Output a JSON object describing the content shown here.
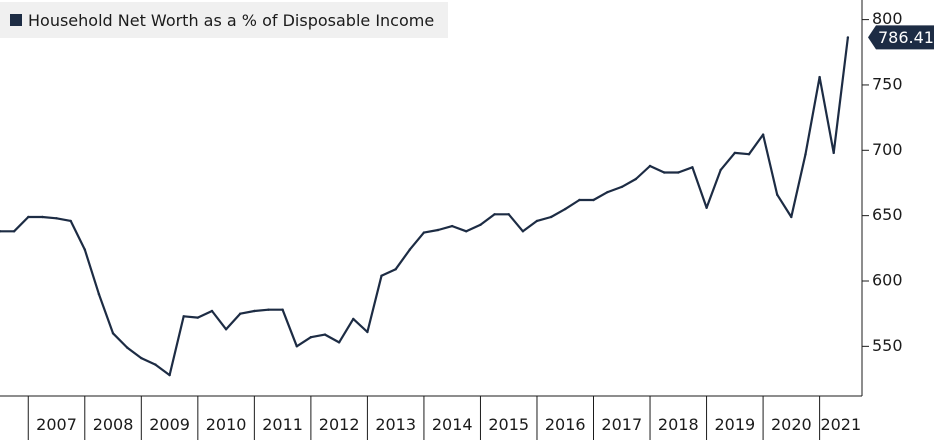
{
  "chart_data": {
    "type": "line",
    "legend": {
      "label": "Household Net Worth as a % of Disposable Income",
      "placement": "top-left"
    },
    "series_color": "#1d2c44",
    "last_value_label": "786.41",
    "y_axis": {
      "position": "right",
      "ticks": [
        550,
        600,
        650,
        700,
        750,
        800
      ],
      "ylim": [
        512,
        815
      ]
    },
    "x_axis": {
      "ticks": [
        "2007",
        "2008",
        "2009",
        "2010",
        "2011",
        "2012",
        "2013",
        "2014",
        "2015",
        "2016",
        "2017",
        "2018",
        "2019",
        "2020",
        "2021"
      ],
      "xlim": [
        2006.5,
        2021.75
      ]
    },
    "grid": false,
    "points": [
      [
        "2006Q3",
        638
      ],
      [
        "2006Q4",
        638
      ],
      [
        "2007Q1",
        649
      ],
      [
        "2007Q2",
        649
      ],
      [
        "2007Q3",
        648
      ],
      [
        "2007Q4",
        646
      ],
      [
        "2008Q1",
        624
      ],
      [
        "2008Q2",
        590
      ],
      [
        "2008Q3",
        560
      ],
      [
        "2008Q4",
        549
      ],
      [
        "2009Q1",
        541
      ],
      [
        "2009Q2",
        536
      ],
      [
        "2009Q3",
        528
      ],
      [
        "2009Q4",
        573
      ],
      [
        "2010Q1",
        572
      ],
      [
        "2010Q2",
        577
      ],
      [
        "2010Q3",
        563
      ],
      [
        "2010Q4",
        575
      ],
      [
        "2011Q1",
        577
      ],
      [
        "2011Q2",
        578
      ],
      [
        "2011Q3",
        578
      ],
      [
        "2011Q4",
        550
      ],
      [
        "2012Q1",
        557
      ],
      [
        "2012Q2",
        559
      ],
      [
        "2012Q3",
        553
      ],
      [
        "2012Q4",
        571
      ],
      [
        "2013Q1",
        561
      ],
      [
        "2013Q2",
        604
      ],
      [
        "2013Q3",
        609
      ],
      [
        "2013Q4",
        624
      ],
      [
        "2014Q1",
        637
      ],
      [
        "2014Q2",
        639
      ],
      [
        "2014Q3",
        642
      ],
      [
        "2014Q4",
        638
      ],
      [
        "2015Q1",
        643
      ],
      [
        "2015Q2",
        651
      ],
      [
        "2015Q3",
        651
      ],
      [
        "2015Q4",
        638
      ],
      [
        "2016Q1",
        646
      ],
      [
        "2016Q2",
        649
      ],
      [
        "2016Q3",
        655
      ],
      [
        "2016Q4",
        662
      ],
      [
        "2017Q1",
        662
      ],
      [
        "2017Q2",
        668
      ],
      [
        "2017Q3",
        672
      ],
      [
        "2017Q4",
        678
      ],
      [
        "2018Q1",
        688
      ],
      [
        "2018Q2",
        683
      ],
      [
        "2018Q3",
        683
      ],
      [
        "2018Q4",
        687
      ],
      [
        "2019Q1",
        656
      ],
      [
        "2019Q2",
        685
      ],
      [
        "2019Q3",
        698
      ],
      [
        "2019Q4",
        697
      ],
      [
        "2020Q1",
        712
      ],
      [
        "2020Q2",
        666
      ],
      [
        "2020Q3",
        649
      ],
      [
        "2020Q4",
        697
      ],
      [
        "2021Q1",
        756
      ],
      [
        "2021Q2",
        698
      ],
      [
        "2021Q3",
        786.41
      ]
    ]
  }
}
